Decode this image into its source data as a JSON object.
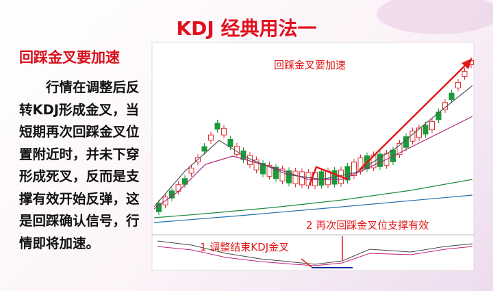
{
  "header": {
    "title": "KDJ 经典用法一",
    "subtitle": "回踩金叉要加速"
  },
  "body": {
    "lines": [
      "　　行情在调整后反",
      "转KDJ形成金叉，当",
      "短期再次回踩金叉位",
      "置附近时，并未下穿",
      "形成死叉，反而是支",
      "撑有效开始反弹，这",
      "是回踩确认信号，行",
      "情即将加速。"
    ]
  },
  "chart": {
    "annotations": [
      "回踩金叉要加速",
      "1 调整结束KDJ金叉",
      "2 再次回踩金叉位支撑有效"
    ]
  }
}
